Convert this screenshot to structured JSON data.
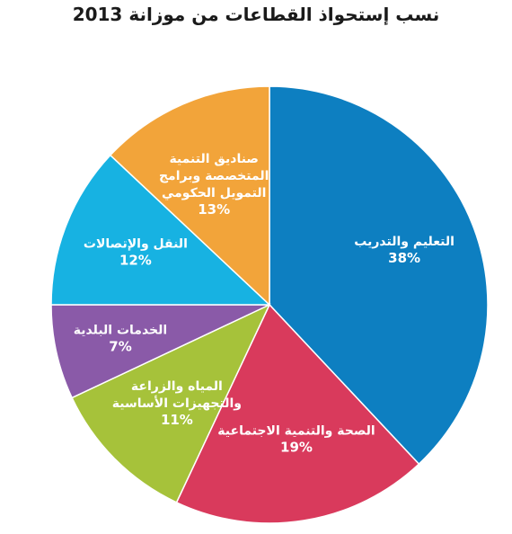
{
  "chart_data": {
    "type": "pie",
    "title": "نسب إستحواذ القطاعات من موزانة 2013",
    "slices": [
      {
        "label": [
          "التعليم والتدريب"
        ],
        "value": 38,
        "value_label": "38%",
        "color": "#0d7fc1"
      },
      {
        "label": [
          "الصحة والتنمية الاجتماعية"
        ],
        "value": 19,
        "value_label": "19%",
        "color": "#d93a5c"
      },
      {
        "label": [
          "المياه والزراعة",
          "والتجهيزات الأساسية"
        ],
        "value": 11,
        "value_label": "11%",
        "color": "#a6c23a"
      },
      {
        "label": [
          "الخدمات البلدية"
        ],
        "value": 7,
        "value_label": "7%",
        "color": "#8a5aa8"
      },
      {
        "label": [
          "النقل والإتصالات"
        ],
        "value": 12,
        "value_label": "12%",
        "color": "#17b2e2"
      },
      {
        "label": [
          "صناديق التنمية",
          "المتخصصة وبرامج",
          "التمويل الحكومي"
        ],
        "value": 13,
        "value_label": "13%",
        "color": "#f2a43a"
      }
    ],
    "legend": "none"
  }
}
